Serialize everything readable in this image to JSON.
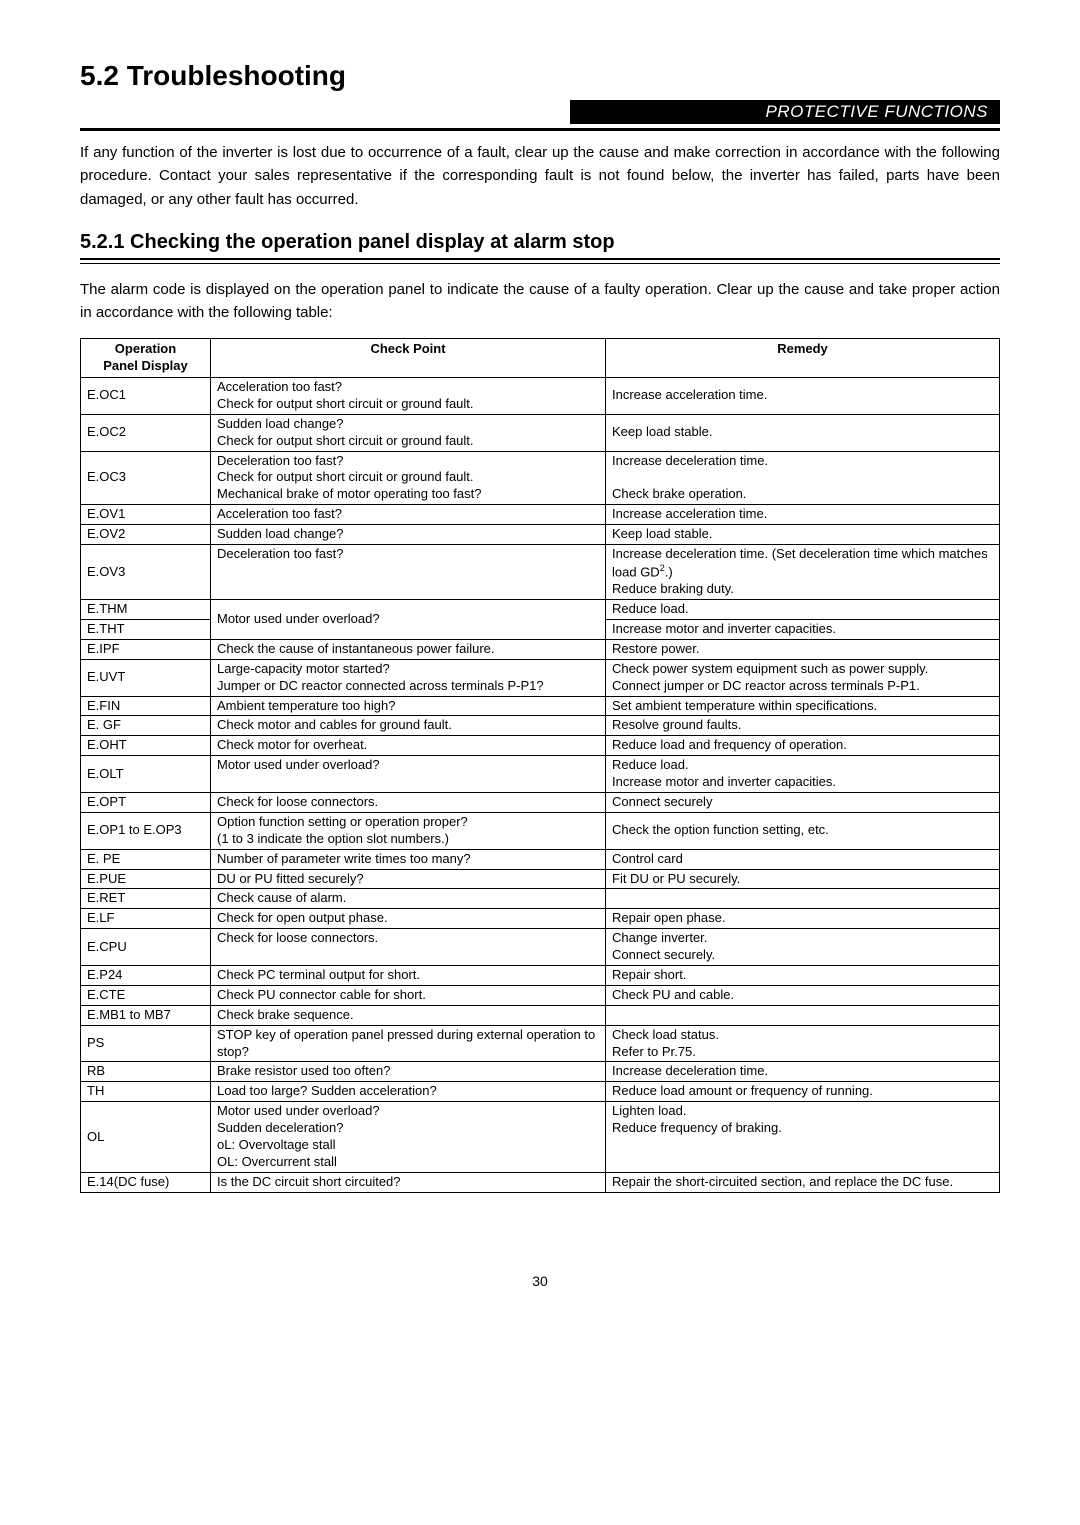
{
  "heading": "5.2   Troubleshooting",
  "banner": "PROTECTIVE FUNCTIONS",
  "intro": "If any function of the inverter is lost due to occurrence of a fault, clear up the cause and make correction in accordance with the following procedure. Contact your sales representative if the corresponding fault is not found below, the inverter has failed, parts have been damaged, or any other fault has occurred.",
  "subheading": "5.2.1   Checking the operation panel display at alarm stop",
  "subintro": "The alarm code is displayed on the operation panel to indicate the cause of a faulty operation. Clear up the cause and take proper action in accordance with the following table:",
  "table": {
    "headers": {
      "c1": "Operation\nPanel Display",
      "c2": "Check Point",
      "c3": "Remedy"
    },
    "rows": [
      {
        "c1": "E.OC1",
        "c2": "Acceleration too fast?\nCheck for output short circuit or ground fault.",
        "c3": "Increase acceleration time."
      },
      {
        "c1": "E.OC2",
        "c2": "Sudden load change?\nCheck for output short circuit or ground fault.",
        "c3": "Keep load stable."
      },
      {
        "c1": "E.OC3",
        "c2": "Deceleration too fast?\nCheck for output short circuit or ground fault.\nMechanical brake of motor operating too fast?",
        "c3": "Increase deceleration time.\n\nCheck brake operation."
      },
      {
        "c1": "E.OV1",
        "c2": "Acceleration too fast?",
        "c3": "Increase acceleration time."
      },
      {
        "c1": "E.OV2",
        "c2": "Sudden load change?",
        "c3": "Keep load stable."
      },
      {
        "c1": "E.OV3",
        "c2": "Deceleration too fast?",
        "c3_html": "Increase deceleration time. (Set deceleration time which matches load GD<span class=\"sup\">2</span>.)<br>Reduce braking duty."
      },
      {
        "merge2": true,
        "c1a": "E.THM",
        "c1b": "E.THT",
        "c2": "Motor used under overload?",
        "c3a": "Reduce load.",
        "c3b": "Increase motor and inverter capacities."
      },
      {
        "c1": "E.IPF",
        "c2": "Check the cause of instantaneous power failure.",
        "c3": "Restore power."
      },
      {
        "c1": "E.UVT",
        "c2": "Large-capacity motor started?\nJumper or DC reactor connected across terminals P-P1?",
        "c3": "Check power system equipment such as power supply.\nConnect jumper or DC reactor across terminals P-P1."
      },
      {
        "c1": "E.FIN",
        "c2": "Ambient temperature too high?",
        "c3": "Set ambient temperature within specifications."
      },
      {
        "c1": "E. GF",
        "c2": "Check motor and cables for ground fault.",
        "c3": "Resolve ground faults."
      },
      {
        "c1": "E.OHT",
        "c2": "Check motor for overheat.",
        "c3": "Reduce load and frequency of operation."
      },
      {
        "c1": "E.OLT",
        "c2": "Motor used under overload?",
        "c3": "Reduce load.\nIncrease motor and inverter capacities."
      },
      {
        "c1": "E.OPT",
        "c2": "Check for loose connectors.",
        "c3": "Connect securely"
      },
      {
        "c1": "E.OP1 to E.OP3",
        "c2": "Option function setting or operation proper?\n(1 to 3 indicate the option slot numbers.)",
        "c3": "Check the option function setting, etc."
      },
      {
        "c1": "E. PE",
        "c2": "Number of parameter write times too many?",
        "c3": "Control card"
      },
      {
        "c1": "E.PUE",
        "c2": "DU or PU fitted securely?",
        "c3": "Fit DU or PU securely."
      },
      {
        "c1": "E.RET",
        "c2": "Check cause of alarm.",
        "c3": ""
      },
      {
        "c1": "E.LF",
        "c2": "Check for open output phase.",
        "c3": "Repair open phase."
      },
      {
        "c1": "E.CPU",
        "c2": "Check for loose connectors.",
        "c3": "Change inverter.\nConnect securely."
      },
      {
        "c1": "E.P24",
        "c2": "Check PC terminal output for short.",
        "c3": "Repair short."
      },
      {
        "c1": "E.CTE",
        "c2": "Check PU connector cable for short.",
        "c3": "Check PU and cable."
      },
      {
        "c1": "E.MB1 to MB7",
        "c2": "Check brake sequence.",
        "c3": ""
      },
      {
        "c1": "PS",
        "c2": "STOP key of operation panel pressed during external operation to stop?",
        "c3": "Check load status.\nRefer to Pr.75."
      },
      {
        "c1": "RB",
        "c2": "Brake resistor used too often?",
        "c3": "Increase deceleration time."
      },
      {
        "c1": "TH",
        "c2": "Load too large? Sudden acceleration?",
        "c3": "Reduce load amount or frequency of running."
      },
      {
        "c1": "OL",
        "c2": "Motor used under overload?\nSudden deceleration?\noL:  Overvoltage stall\nOL:  Overcurrent stall",
        "c3": "Lighten load.\nReduce frequency of braking."
      },
      {
        "c1": "E.14(DC fuse)",
        "c2": "Is the DC circuit short circuited?",
        "c3": "Repair the short-circuited section, and replace the DC fuse."
      }
    ]
  },
  "page_number": "30"
}
